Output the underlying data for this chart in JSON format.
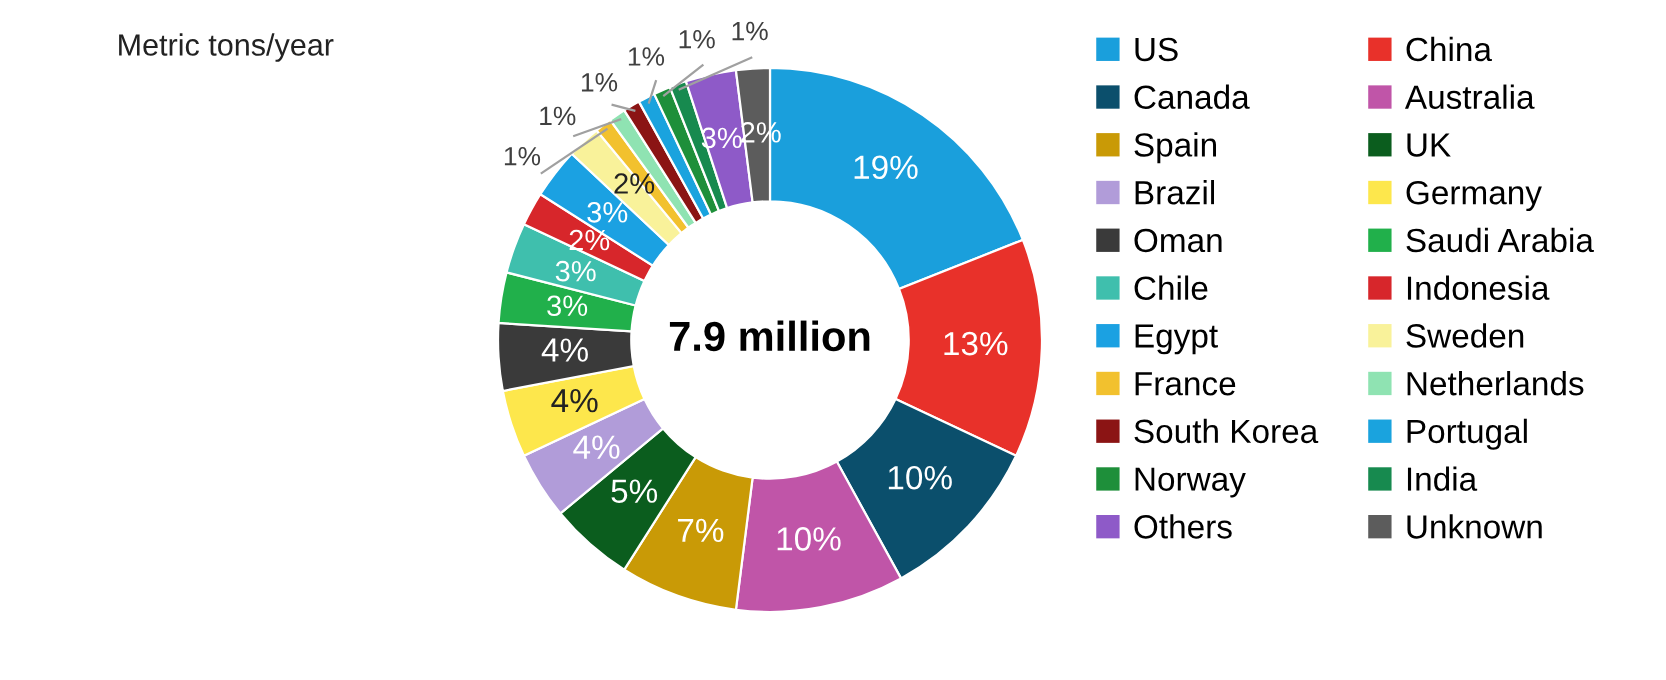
{
  "chart_data": {
    "type": "donut",
    "title": "Metric tons/year",
    "annotations": [
      "7.9 million"
    ],
    "categories": [
      "US",
      "China",
      "Canada",
      "Australia",
      "Spain",
      "UK",
      "Brazil",
      "Germany",
      "Oman",
      "Saudi Arabia",
      "Chile",
      "Indonesia",
      "Egypt",
      "Sweden",
      "France",
      "Netherlands",
      "South Korea",
      "Portugal",
      "Norway",
      "India",
      "Others",
      "Unknown"
    ],
    "values": [
      19,
      13,
      10,
      10,
      7,
      5,
      4,
      4,
      4,
      3,
      3,
      2,
      3,
      2,
      1,
      1,
      1,
      1,
      1,
      1,
      3,
      2
    ],
    "colors": [
      "#1a9fdc",
      "#e8312a",
      "#0b4f6c",
      "#c055a8",
      "#c99a06",
      "#0b5d1e",
      "#b19cd9",
      "#fde74c",
      "#3a3a3a",
      "#21b04b",
      "#3fbfad",
      "#d7262b",
      "#1ba1e2",
      "#f9f29a",
      "#f2c12e",
      "#8fe3b2",
      "#8b1414",
      "#1aa3de",
      "#1e8f3a",
      "#178a4f",
      "#8e5ac8",
      "#5c5c5c"
    ],
    "value_labels": [
      "19%",
      "13%",
      "10%",
      "10%",
      "7%",
      "5%",
      "4%",
      "4%",
      "4%",
      "3%",
      "3%",
      "2%",
      "3%",
      "2%",
      "1%",
      "1%",
      "1%",
      "1%",
      "1%",
      "1%",
      "3%",
      "2%"
    ],
    "legend": "right"
  }
}
